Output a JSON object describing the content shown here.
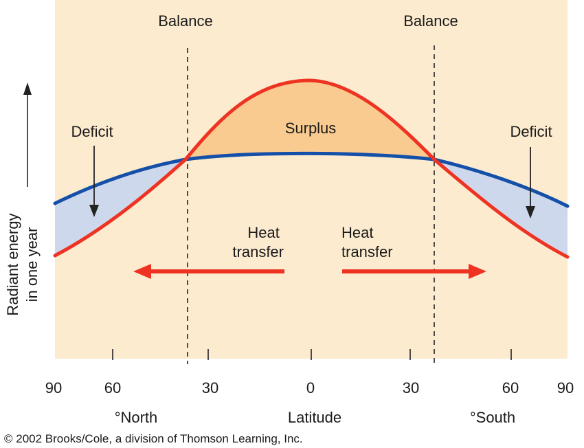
{
  "labels": {
    "balance_left": "Balance",
    "balance_right": "Balance",
    "deficit_left": "Deficit",
    "deficit_right": "Deficit",
    "surplus": "Surplus",
    "heat_transfer_left": [
      "Heat",
      "transfer"
    ],
    "heat_transfer_right": [
      "Heat",
      "transfer"
    ],
    "y_axis": [
      "Radiant energy",
      "in one year"
    ],
    "x_axis_north": "°North",
    "x_axis_center": "Latitude",
    "x_axis_south": "°South"
  },
  "x_ticks": [
    "90",
    "60",
    "30",
    "0",
    "30",
    "60",
    "90"
  ],
  "credit": "© 2002 Brooks/Cole, a division of Thomson Learning, Inc.",
  "colors": {
    "background": "#fcebcf",
    "surplus_fill": "#f9cb91",
    "deficit_fill": "#ced8ec",
    "absorbed_curve": "#ee3322",
    "emitted_curve": "#1550a8",
    "arrow": "#ee3322"
  }
}
